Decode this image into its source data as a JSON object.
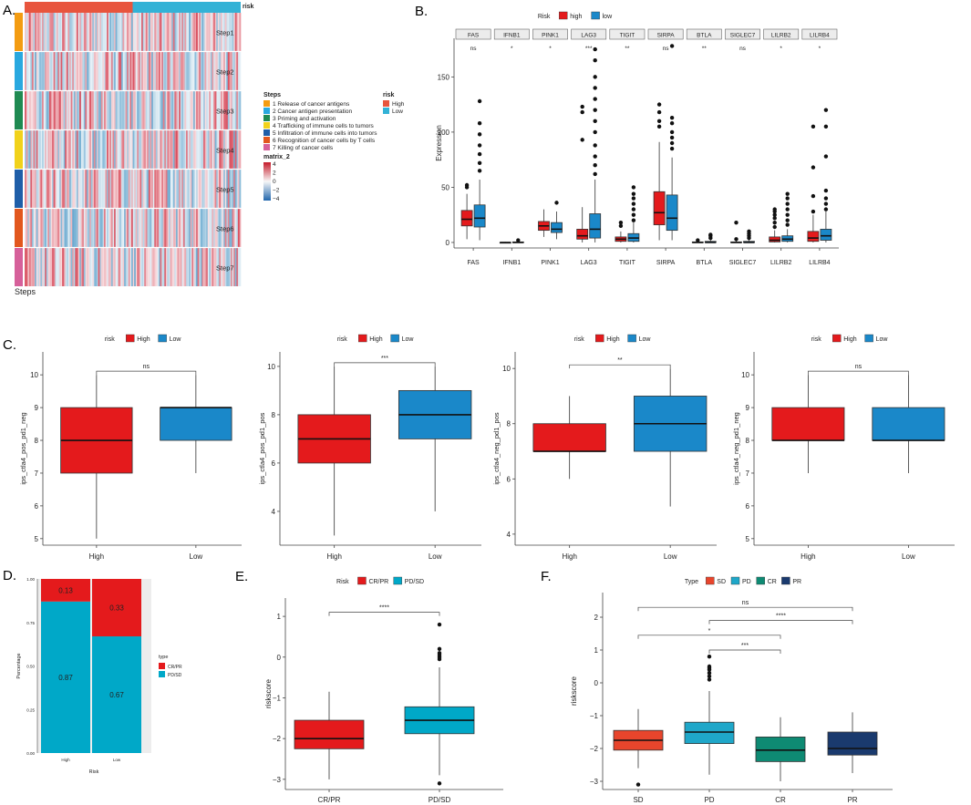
{
  "colors": {
    "high_red": "#e41a1c",
    "low_blue": "#1a88c9",
    "heat_red": "#d53e4f",
    "heat_blue": "#4393c3",
    "crpr_red": "#e41a1c",
    "pdsd_cyan": "#00a8c8",
    "sd_red": "#e8452c",
    "pd_cyan": "#1fa7c9",
    "cr_teal": "#0e8a73",
    "pr_navy": "#1a3a6e"
  },
  "panel_labels": {
    "a": "A.",
    "b": "B.",
    "c": "C.",
    "d": "D.",
    "e": "E.",
    "f": "F."
  },
  "chart_data": [
    {
      "id": "A",
      "type": "heatmap",
      "top_annotation_label": "risk",
      "row_labels": [
        "Step1",
        "Step2",
        "Step3",
        "Step4",
        "Step5",
        "Step6",
        "Step7"
      ],
      "row_colors": [
        "#f39c12",
        "#29a8df",
        "#1f8a52",
        "#f1d21b",
        "#1f5ea8",
        "#e2571e",
        "#d6609a"
      ],
      "risk_groups": [
        "High",
        "Low"
      ],
      "risk_group_colors": [
        "#e8553d",
        "#33b2d6"
      ],
      "high_fraction": 0.5,
      "footer_label": "Steps",
      "legend_steps_title": "Steps",
      "legend_steps": [
        "1 Release of cancer antigens",
        "2 Cancer antigen presentation",
        "3 Priming and activation",
        "4 Trafficking of immune cells to tumors",
        "5 Infiltration of immune cells into tumors",
        "6 Recognition of cancer cells by T cells",
        "7 Killing of cancer cells"
      ],
      "legend_risk_title": "risk",
      "legend_risk": [
        "High",
        "Low"
      ],
      "legend_matrix_title": "matrix_2",
      "legend_matrix_ticks": [
        "4",
        "2",
        "0",
        "−2",
        "−4"
      ],
      "value_range": [
        -4,
        4
      ]
    },
    {
      "id": "B",
      "type": "box",
      "legend_title": "Risk",
      "legend": [
        "high",
        "low"
      ],
      "ylabel": "Expression",
      "ylim": [
        -5,
        185
      ],
      "yticks": [
        0,
        50,
        100,
        150
      ],
      "categories": [
        "FAS",
        "IFNB1",
        "PINK1",
        "LAG3",
        "TIGIT",
        "SIRPA",
        "BTLA",
        "SIGLEC7",
        "LILRB2",
        "LILRB4"
      ],
      "significance": [
        "ns",
        "*",
        "*",
        "***",
        "**",
        "ns",
        "**",
        "ns",
        "*",
        "*"
      ],
      "series": [
        {
          "name": "high",
          "boxes": [
            [
              3,
              15,
              21,
              29,
              44
            ],
            [
              0,
              0,
              0,
              0,
              0.5
            ],
            [
              5,
              11,
              15,
              19,
              30
            ],
            [
              0,
              3,
              6,
              12,
              32
            ],
            [
              0,
              1,
              3,
              5,
              10
            ],
            [
              2,
              16,
              27,
              46,
              91
            ],
            [
              0,
              0,
              0,
              0.5,
              1
            ],
            [
              0,
              0,
              0,
              0.5,
              2
            ],
            [
              0,
              0.5,
              2,
              5,
              11
            ],
            [
              0,
              1,
              4,
              10,
              25
            ]
          ],
          "outliers": [
            [
              50,
              52
            ],
            [],
            [],
            [
              93,
              118,
              123
            ],
            [
              15,
              18
            ],
            [
              105,
              110,
              118,
              125
            ],
            [
              2
            ],
            [
              3,
              18
            ],
            [
              14,
              18,
              22,
              25,
              28,
              30
            ],
            [
              28,
              42,
              68,
              105
            ]
          ]
        },
        {
          "name": "low",
          "boxes": [
            [
              2,
              14,
              22,
              34,
              57
            ],
            [
              0,
              0,
              0,
              0.5,
              1
            ],
            [
              3,
              9,
              12,
              18,
              28
            ],
            [
              0,
              4,
              12,
              26,
              57
            ],
            [
              0,
              1,
              4,
              8,
              18
            ],
            [
              2,
              11,
              22,
              43,
              77
            ],
            [
              0,
              0,
              0,
              1,
              3
            ],
            [
              0,
              0,
              0,
              1,
              3
            ],
            [
              0,
              1,
              3,
              6,
              12
            ],
            [
              0,
              2,
              6,
              12,
              28
            ]
          ],
          "outliers": [
            [
              65,
              72,
              80,
              88,
              98,
              108,
              128
            ],
            [
              2
            ],
            [
              36
            ],
            [
              62,
              70,
              78,
              88,
              100,
              110,
              120,
              130,
              140,
              150,
              165,
              175
            ],
            [
              20,
              25,
              30,
              35,
              40,
              44,
              50
            ],
            [
              85,
              90,
              95,
              100,
              108,
              113,
              178
            ],
            [
              4,
              6,
              7
            ],
            [
              4,
              6,
              8,
              10
            ],
            [
              16,
              20,
              25,
              30,
              35,
              40,
              44
            ],
            [
              30,
              35,
              40,
              47,
              78,
              105,
              120
            ]
          ]
        }
      ]
    },
    {
      "id": "C1",
      "type": "box",
      "legend_title": "risk",
      "legend": [
        "High",
        "Low"
      ],
      "ylabel": "ips_ctla4_pos_pd1_neg",
      "ylim": [
        4.8,
        10.7
      ],
      "yticks": [
        5,
        6,
        7,
        8,
        9,
        10
      ],
      "categories": [
        "High",
        "Low"
      ],
      "significance": "ns",
      "boxes": [
        [
          5,
          7,
          8,
          9,
          10
        ],
        [
          7,
          8,
          9,
          9,
          10
        ]
      ]
    },
    {
      "id": "C2",
      "type": "box",
      "legend_title": "risk",
      "legend": [
        "High",
        "Low"
      ],
      "ylabel": "ips_ctla4_pos_pd1_pos",
      "ylim": [
        2.6,
        10.6
      ],
      "yticks": [
        4,
        6,
        8,
        10
      ],
      "categories": [
        "High",
        "Low"
      ],
      "significance": "***",
      "boxes": [
        [
          3,
          6,
          7,
          8,
          10
        ],
        [
          4,
          7,
          8,
          9,
          10
        ]
      ]
    },
    {
      "id": "C3",
      "type": "box",
      "legend_title": "risk",
      "legend": [
        "High",
        "Low"
      ],
      "ylabel": "ips_ctla4_neg_pd1_pos",
      "ylim": [
        3.6,
        10.6
      ],
      "yticks": [
        4,
        6,
        8,
        10
      ],
      "categories": [
        "High",
        "Low"
      ],
      "significance": "**",
      "boxes": [
        [
          6,
          7,
          7,
          8,
          9
        ],
        [
          5,
          7,
          8,
          9,
          10
        ]
      ]
    },
    {
      "id": "C4",
      "type": "box",
      "legend_title": "risk",
      "legend": [
        "High",
        "Low"
      ],
      "ylabel": "ips_ctla4_neg_pd1_neg",
      "ylim": [
        4.8,
        10.7
      ],
      "yticks": [
        5,
        6,
        7,
        8,
        9,
        10
      ],
      "categories": [
        "High",
        "Low"
      ],
      "significance": "ns",
      "boxes": [
        [
          7,
          8,
          8,
          9,
          10
        ],
        [
          7,
          8,
          8,
          9,
          10
        ]
      ]
    },
    {
      "id": "D",
      "type": "bar",
      "stacked": true,
      "categories": [
        "High",
        "Low"
      ],
      "xlabel": "Risk",
      "ylabel": "Percentage",
      "yticks": [
        "0.00",
        "0.25",
        "0.50",
        "0.75",
        "1.00"
      ],
      "ylim": [
        0,
        1
      ],
      "series": [
        {
          "name": "CR/PR",
          "values": [
            0.13,
            0.33
          ],
          "labels": [
            "0.13",
            "0.33"
          ]
        },
        {
          "name": "PD/SD",
          "values": [
            0.87,
            0.67
          ],
          "labels": [
            "0.87",
            "0.67"
          ]
        }
      ],
      "legend_title": "type"
    },
    {
      "id": "E",
      "type": "box",
      "legend_title": "Risk",
      "legend": [
        "CR/PR",
        "PD/SD"
      ],
      "ylabel": "riskscore",
      "ylim": [
        -3.25,
        1.45
      ],
      "yticks": [
        -3,
        -2,
        -1,
        0,
        1
      ],
      "categories": [
        "CR/PR",
        "PD/SD"
      ],
      "significance": "****",
      "boxes": [
        [
          -3.0,
          -2.25,
          -2.0,
          -1.55,
          -0.85
        ],
        [
          -2.9,
          -1.88,
          -1.55,
          -1.22,
          -0.25
        ]
      ],
      "outliers": [
        [],
        [
          -3.1,
          -0.05,
          0.0,
          0.05,
          0.1,
          0.2,
          0.8
        ]
      ]
    },
    {
      "id": "F",
      "type": "box",
      "legend_title": "Type",
      "legend": [
        "SD",
        "PD",
        "CR",
        "PR"
      ],
      "ylabel": "riskscore",
      "ylim": [
        -3.25,
        2.75
      ],
      "yticks": [
        -3,
        -2,
        -1,
        0,
        1,
        2
      ],
      "categories": [
        "SD",
        "PD",
        "CR",
        "PR"
      ],
      "comparisons": [
        {
          "from": 0,
          "to": 3,
          "label": "ns"
        },
        {
          "from": 1,
          "to": 3,
          "label": "****"
        },
        {
          "from": 0,
          "to": 2,
          "label": "*"
        },
        {
          "from": 1,
          "to": 2,
          "label": "***"
        }
      ],
      "boxes": [
        [
          -2.6,
          -2.05,
          -1.75,
          -1.45,
          -0.8
        ],
        [
          -2.8,
          -1.85,
          -1.5,
          -1.2,
          -0.25
        ],
        [
          -3.0,
          -2.4,
          -2.05,
          -1.65,
          -1.05
        ],
        [
          -2.75,
          -2.2,
          -2.0,
          -1.5,
          -0.9
        ]
      ],
      "outliers": [
        [
          -3.1
        ],
        [
          0.8,
          0.1,
          0.2,
          0.3,
          0.4,
          0.45,
          0.5
        ],
        [],
        []
      ]
    }
  ]
}
